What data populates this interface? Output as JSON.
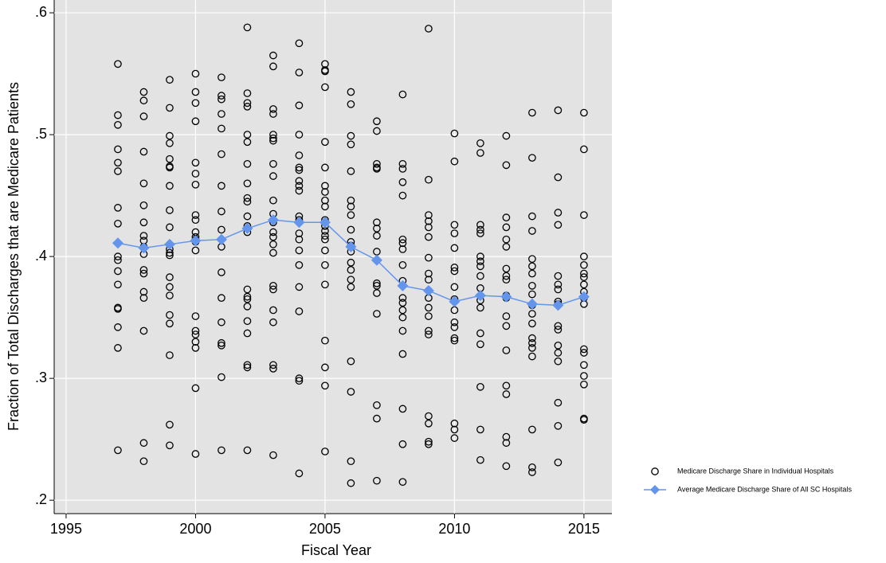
{
  "chart_data": {
    "type": "scatter",
    "xlabel": "Fiscal Year",
    "ylabel": "Fraction of Total Discharges that are Medicare Patients",
    "xlim": [
      1994.54,
      2016.08
    ],
    "ylim": [
      0.189,
      0.6105
    ],
    "xticks": [
      1995,
      2000,
      2005,
      2010,
      2015
    ],
    "yticks": [
      {
        "value": 0.2,
        "label": ".2"
      },
      {
        "value": 0.3,
        "label": ".3"
      },
      {
        "value": 0.4,
        "label": ".4"
      },
      {
        "value": 0.5,
        "label": ".5"
      },
      {
        "value": 0.6,
        "label": ".6"
      }
    ],
    "grid": true,
    "legend": "right",
    "series": [
      {
        "name": "Medicare Discharge Share in Individual Hospitals",
        "type": "scatter",
        "marker": "circle",
        "color": "#000000",
        "x": [
          1997,
          1997,
          1997,
          1997,
          1997,
          1997,
          1997,
          1997,
          1997,
          1997,
          1997,
          1997,
          1997,
          1997,
          1997,
          1997,
          1997,
          1998,
          1998,
          1998,
          1998,
          1998,
          1998,
          1998,
          1998,
          1998,
          1998,
          1998,
          1998,
          1998,
          1998,
          1998,
          1998,
          1998,
          1998,
          1999,
          1999,
          1999,
          1999,
          1999,
          1999,
          1999,
          1999,
          1999,
          1999,
          1999,
          1999,
          1999,
          1999,
          1999,
          1999,
          1999,
          1999,
          1999,
          1999,
          1999,
          2000,
          2000,
          2000,
          2000,
          2000,
          2000,
          2000,
          2000,
          2000,
          2000,
          2000,
          2000,
          2000,
          2000,
          2000,
          2000,
          2000,
          2000,
          2000,
          2000,
          2000,
          2001,
          2001,
          2001,
          2001,
          2001,
          2001,
          2001,
          2001,
          2001,
          2001,
          2001,
          2001,
          2001,
          2001,
          2001,
          2001,
          2001,
          2002,
          2002,
          2002,
          2002,
          2002,
          2002,
          2002,
          2002,
          2002,
          2002,
          2002,
          2002,
          2002,
          2002,
          2002,
          2002,
          2002,
          2002,
          2002,
          2002,
          2002,
          2002,
          2003,
          2003,
          2003,
          2003,
          2003,
          2003,
          2003,
          2003,
          2003,
          2003,
          2003,
          2003,
          2003,
          2003,
          2003,
          2003,
          2003,
          2003,
          2003,
          2003,
          2003,
          2003,
          2003,
          2004,
          2004,
          2004,
          2004,
          2004,
          2004,
          2004,
          2004,
          2004,
          2004,
          2004,
          2004,
          2004,
          2004,
          2004,
          2004,
          2004,
          2004,
          2004,
          2004,
          2004,
          2005,
          2005,
          2005,
          2005,
          2005,
          2005,
          2005,
          2005,
          2005,
          2005,
          2005,
          2005,
          2005,
          2005,
          2005,
          2005,
          2005,
          2005,
          2005,
          2005,
          2005,
          2005,
          2006,
          2006,
          2006,
          2006,
          2006,
          2006,
          2006,
          2006,
          2006,
          2006,
          2006,
          2006,
          2006,
          2006,
          2006,
          2006,
          2006,
          2006,
          2006,
          2006,
          2007,
          2007,
          2007,
          2007,
          2007,
          2007,
          2007,
          2007,
          2007,
          2007,
          2007,
          2007,
          2007,
          2007,
          2007,
          2007,
          2008,
          2008,
          2008,
          2008,
          2008,
          2008,
          2008,
          2008,
          2008,
          2008,
          2008,
          2008,
          2008,
          2008,
          2008,
          2008,
          2008,
          2008,
          2008,
          2009,
          2009,
          2009,
          2009,
          2009,
          2009,
          2009,
          2009,
          2009,
          2009,
          2009,
          2009,
          2009,
          2009,
          2009,
          2009,
          2009,
          2009,
          2009,
          2010,
          2010,
          2010,
          2010,
          2010,
          2010,
          2010,
          2010,
          2010,
          2010,
          2010,
          2010,
          2010,
          2010,
          2010,
          2010,
          2010,
          2011,
          2011,
          2011,
          2011,
          2011,
          2011,
          2011,
          2011,
          2011,
          2011,
          2011,
          2011,
          2011,
          2011,
          2011,
          2011,
          2011,
          2012,
          2012,
          2012,
          2012,
          2012,
          2012,
          2012,
          2012,
          2012,
          2012,
          2012,
          2012,
          2012,
          2012,
          2012,
          2012,
          2012,
          2012,
          2012,
          2013,
          2013,
          2013,
          2013,
          2013,
          2013,
          2013,
          2013,
          2013,
          2013,
          2013,
          2013,
          2013,
          2013,
          2013,
          2013,
          2013,
          2013,
          2013,
          2014,
          2014,
          2014,
          2014,
          2014,
          2014,
          2014,
          2014,
          2014,
          2014,
          2014,
          2014,
          2014,
          2014,
          2014,
          2014,
          2014,
          2015,
          2015,
          2015,
          2015,
          2015,
          2015,
          2015,
          2015,
          2015,
          2015,
          2015,
          2015,
          2015,
          2015,
          2015,
          2015,
          2015,
          2015
        ],
        "values": [
          0.558,
          0.516,
          0.508,
          0.488,
          0.477,
          0.47,
          0.44,
          0.427,
          0.4,
          0.397,
          0.388,
          0.377,
          0.357,
          0.358,
          0.342,
          0.325,
          0.241,
          0.535,
          0.528,
          0.515,
          0.486,
          0.46,
          0.442,
          0.428,
          0.417,
          0.413,
          0.408,
          0.402,
          0.389,
          0.386,
          0.371,
          0.366,
          0.339,
          0.247,
          0.232,
          0.545,
          0.522,
          0.499,
          0.493,
          0.48,
          0.474,
          0.473,
          0.458,
          0.438,
          0.424,
          0.406,
          0.403,
          0.401,
          0.383,
          0.375,
          0.368,
          0.352,
          0.345,
          0.319,
          0.262,
          0.245,
          0.55,
          0.535,
          0.526,
          0.511,
          0.477,
          0.468,
          0.459,
          0.434,
          0.43,
          0.42,
          0.416,
          0.414,
          0.412,
          0.405,
          0.351,
          0.339,
          0.336,
          0.33,
          0.325,
          0.292,
          0.238,
          0.547,
          0.532,
          0.529,
          0.517,
          0.505,
          0.484,
          0.458,
          0.437,
          0.422,
          0.408,
          0.387,
          0.366,
          0.346,
          0.329,
          0.327,
          0.301,
          0.241,
          0.588,
          0.534,
          0.526,
          0.523,
          0.5,
          0.494,
          0.476,
          0.46,
          0.448,
          0.445,
          0.433,
          0.425,
          0.42,
          0.373,
          0.367,
          0.365,
          0.359,
          0.347,
          0.337,
          0.311,
          0.309,
          0.241,
          0.565,
          0.556,
          0.521,
          0.517,
          0.5,
          0.497,
          0.495,
          0.476,
          0.466,
          0.446,
          0.435,
          0.428,
          0.42,
          0.416,
          0.41,
          0.403,
          0.376,
          0.373,
          0.356,
          0.346,
          0.311,
          0.308,
          0.237,
          0.575,
          0.551,
          0.524,
          0.5,
          0.483,
          0.473,
          0.471,
          0.462,
          0.458,
          0.454,
          0.433,
          0.43,
          0.419,
          0.414,
          0.405,
          0.393,
          0.375,
          0.355,
          0.3,
          0.298,
          0.222,
          0.558,
          0.553,
          0.552,
          0.539,
          0.494,
          0.473,
          0.458,
          0.453,
          0.446,
          0.441,
          0.43,
          0.425,
          0.421,
          0.417,
          0.414,
          0.405,
          0.393,
          0.377,
          0.331,
          0.309,
          0.294,
          0.24,
          0.535,
          0.525,
          0.499,
          0.492,
          0.47,
          0.446,
          0.441,
          0.434,
          0.422,
          0.412,
          0.409,
          0.404,
          0.395,
          0.389,
          0.381,
          0.375,
          0.314,
          0.289,
          0.232,
          0.214,
          0.511,
          0.503,
          0.476,
          0.473,
          0.472,
          0.428,
          0.423,
          0.417,
          0.404,
          0.378,
          0.376,
          0.37,
          0.353,
          0.278,
          0.267,
          0.216,
          0.533,
          0.476,
          0.472,
          0.461,
          0.45,
          0.414,
          0.411,
          0.406,
          0.393,
          0.38,
          0.366,
          0.362,
          0.356,
          0.35,
          0.339,
          0.32,
          0.275,
          0.246,
          0.215,
          0.587,
          0.463,
          0.434,
          0.429,
          0.424,
          0.416,
          0.399,
          0.386,
          0.381,
          0.372,
          0.366,
          0.358,
          0.351,
          0.339,
          0.336,
          0.269,
          0.263,
          0.248,
          0.246,
          0.501,
          0.478,
          0.426,
          0.419,
          0.407,
          0.391,
          0.388,
          0.375,
          0.365,
          0.356,
          0.346,
          0.342,
          0.333,
          0.331,
          0.263,
          0.258,
          0.251,
          0.493,
          0.485,
          0.426,
          0.422,
          0.419,
          0.4,
          0.396,
          0.392,
          0.384,
          0.374,
          0.364,
          0.358,
          0.337,
          0.328,
          0.293,
          0.258,
          0.233,
          0.499,
          0.475,
          0.432,
          0.424,
          0.414,
          0.408,
          0.39,
          0.384,
          0.381,
          0.368,
          0.366,
          0.351,
          0.343,
          0.323,
          0.294,
          0.287,
          0.252,
          0.247,
          0.228,
          0.518,
          0.481,
          0.433,
          0.421,
          0.398,
          0.392,
          0.386,
          0.376,
          0.369,
          0.36,
          0.353,
          0.345,
          0.333,
          0.329,
          0.325,
          0.318,
          0.258,
          0.227,
          0.223,
          0.52,
          0.465,
          0.436,
          0.426,
          0.384,
          0.377,
          0.373,
          0.363,
          0.361,
          0.343,
          0.34,
          0.327,
          0.321,
          0.314,
          0.28,
          0.261,
          0.231,
          0.518,
          0.488,
          0.434,
          0.4,
          0.393,
          0.386,
          0.383,
          0.377,
          0.371,
          0.366,
          0.361,
          0.324,
          0.321,
          0.311,
          0.302,
          0.295,
          0.267,
          0.266
        ]
      },
      {
        "name": "Average Medicare Discharge Share of All SC Hospitals",
        "type": "line",
        "marker": "diamond",
        "color": "#6495ed",
        "x": [
          1997,
          1998,
          1999,
          2000,
          2001,
          2002,
          2003,
          2004,
          2005,
          2006,
          2007,
          2008,
          2009,
          2010,
          2011,
          2012,
          2013,
          2014,
          2015
        ],
        "values": [
          0.411,
          0.407,
          0.41,
          0.413,
          0.414,
          0.423,
          0.43,
          0.428,
          0.428,
          0.408,
          0.397,
          0.376,
          0.372,
          0.363,
          0.368,
          0.367,
          0.361,
          0.36,
          0.367
        ]
      }
    ]
  }
}
